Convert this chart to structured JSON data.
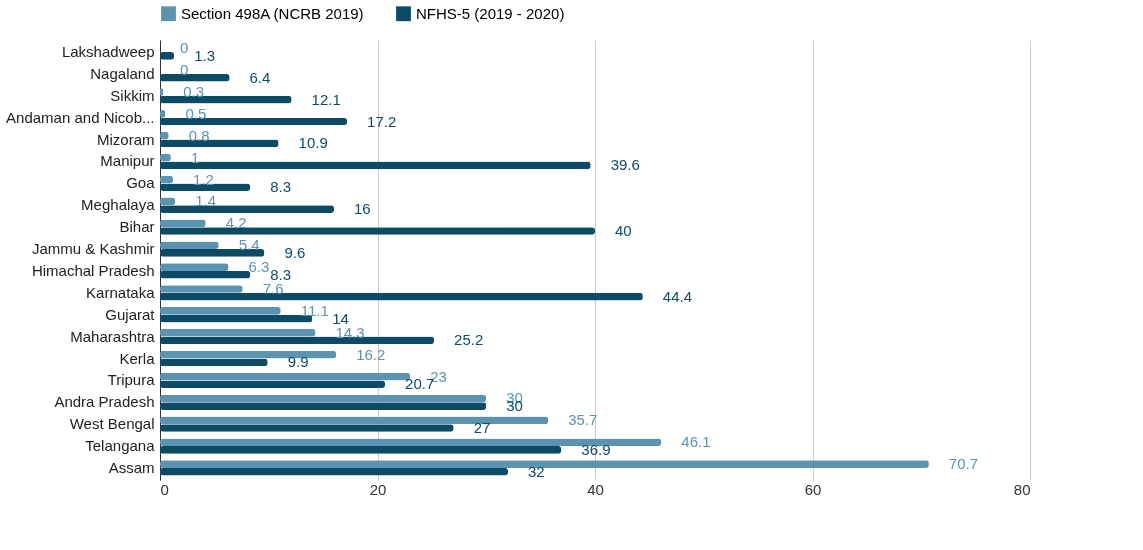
{
  "chart_data": {
    "type": "bar",
    "orientation": "horizontal",
    "categories": [
      "Lakshadweep",
      "Nagaland",
      "Sikkim",
      "Andaman and Nicob...",
      "Mizoram",
      "Manipur",
      "Goa",
      "Meghalaya",
      "Bihar",
      "Jammu & Kashmir",
      "Himachal Pradesh",
      "Karnataka",
      "Gujarat",
      "Maharashtra",
      "Kerla",
      "Tripura",
      "Andra Pradesh",
      "West Bengal",
      "Telangana",
      "Assam"
    ],
    "series": [
      {
        "name": "Section 498A (NCRB 2019)",
        "color": "#5b93b0",
        "values": [
          0,
          0,
          0.3,
          0.5,
          0.8,
          1,
          1.2,
          1.4,
          4.2,
          5.4,
          6.3,
          7.6,
          11.1,
          14.3,
          16.2,
          23,
          30,
          35.7,
          46.1,
          70.7
        ]
      },
      {
        "name": "NFHS-5 (2019 - 2020)",
        "color": "#0d4a66",
        "values": [
          1.3,
          6.4,
          12.1,
          17.2,
          10.9,
          39.6,
          8.3,
          16,
          40,
          9.6,
          8.3,
          44.4,
          14,
          25.2,
          9.9,
          20.7,
          30,
          27,
          36.9,
          32
        ]
      }
    ],
    "xlim": [
      0,
      80
    ],
    "xticks": [
      0,
      20,
      40,
      60,
      80
    ],
    "grid": "x",
    "legend": "top",
    "data_labels": true
  }
}
